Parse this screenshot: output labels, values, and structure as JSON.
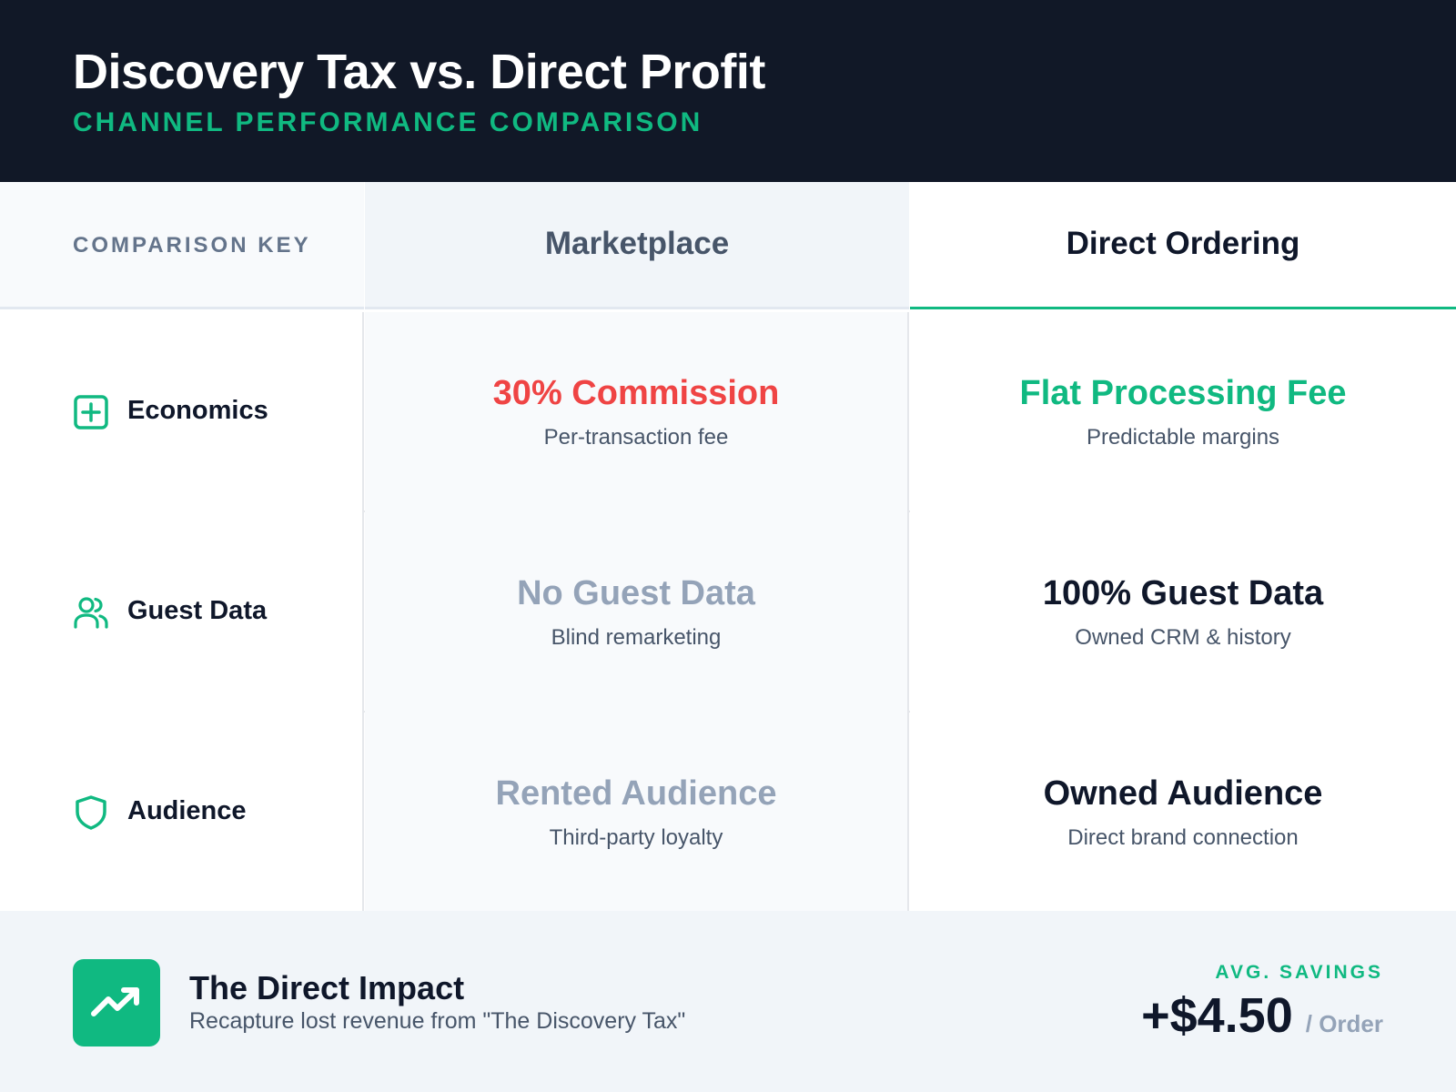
{
  "header": {
    "title": "Discovery Tax vs. Direct Profit",
    "subtitle": "CHANNEL PERFORMANCE COMPARISON"
  },
  "table": {
    "key_label": "COMPARISON KEY",
    "columns": [
      "Marketplace",
      "Direct Ordering"
    ],
    "rows": [
      {
        "label": "Economics",
        "icon": "plus-square-icon",
        "marketplace": {
          "main": "30% Commission",
          "sub": "Per-transaction fee"
        },
        "direct": {
          "main": "Flat Processing Fee",
          "sub": "Predictable margins"
        }
      },
      {
        "label": "Guest Data",
        "icon": "users-icon",
        "marketplace": {
          "main": "No Guest Data",
          "sub": "Blind remarketing"
        },
        "direct": {
          "main": "100% Guest Data",
          "sub": "Owned CRM & history"
        }
      },
      {
        "label": "Audience",
        "icon": "shield-icon",
        "marketplace": {
          "main": "Rented Audience",
          "sub": "Third-party loyalty"
        },
        "direct": {
          "main": "Owned Audience",
          "sub": "Direct brand connection"
        }
      }
    ]
  },
  "footer": {
    "icon": "trending-up-icon",
    "title": "The Direct Impact",
    "subtitle": "Recapture lost revenue from \"The Discovery Tax\"",
    "savings_label": "AVG. SAVINGS",
    "savings_value": "+$4.50",
    "savings_unit": "/ Order"
  },
  "colors": {
    "header_bg": "#111827",
    "accent_green": "#10b981",
    "negative_red": "#ef4444",
    "muted_gray": "#94a3b8"
  }
}
